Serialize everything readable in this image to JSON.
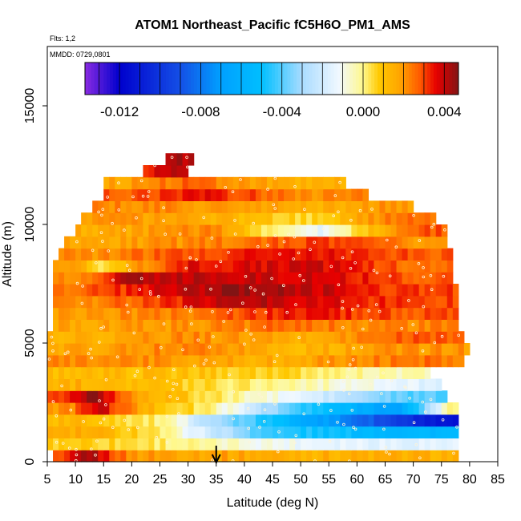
{
  "chart_data": {
    "type": "heatmap",
    "title": "ATOM1 Northeast_Pacific fC5H6O_PM1_AMS",
    "annotations": {
      "flights": "Flts: 1,2",
      "dates": "MMDD: 0729,0801"
    },
    "xlabel": "Latitude (deg N)",
    "ylabel": "Altitude (m)",
    "xlim": [
      5,
      85
    ],
    "ylim": [
      0,
      17500
    ],
    "x_ticks": [
      "5",
      "10",
      "15",
      "20",
      "25",
      "30",
      "35",
      "40",
      "45",
      "50",
      "55",
      "60",
      "65",
      "70",
      "75",
      "80",
      "85"
    ],
    "y_ticks": [
      "0",
      "5000",
      "10000",
      "15000"
    ],
    "colorbar": {
      "range": [
        -0.0137,
        0.0047
      ],
      "tick_values": [
        -0.012,
        -0.008,
        -0.004,
        0.0,
        0.004
      ],
      "tick_labels": [
        "-0.012",
        "-0.008",
        "-0.004",
        "0.000",
        "0.004"
      ]
    },
    "marker": {
      "latitude": 35,
      "symbol": "arrow-down"
    },
    "grid": false,
    "legend": "colorbar inside top",
    "layers": [
      {
        "alt": 250,
        "lat": [
          6,
          78
        ],
        "segments": [
          [
            6,
            9,
            0.0025
          ],
          [
            9,
            15,
            0.0045
          ],
          [
            15,
            25,
            0.002
          ],
          [
            25,
            78,
            0.0015
          ]
        ]
      },
      {
        "alt": 750,
        "lat": [
          5,
          78
        ],
        "segments": [
          [
            5,
            20,
            0.0008
          ],
          [
            20,
            30,
            0.0003
          ],
          [
            30,
            40,
            -0.0005
          ],
          [
            40,
            60,
            -0.0012
          ],
          [
            60,
            78,
            -0.0015
          ]
        ]
      },
      {
        "alt": 1250,
        "lat": [
          5,
          78
        ],
        "segments": [
          [
            5,
            20,
            0.0015
          ],
          [
            20,
            28,
            0.0005
          ],
          [
            28,
            35,
            -0.0015
          ],
          [
            35,
            55,
            -0.0045
          ],
          [
            55,
            78,
            -0.0055
          ]
        ]
      },
      {
        "alt": 1750,
        "lat": [
          5,
          78
        ],
        "segments": [
          [
            5,
            20,
            0.0012
          ],
          [
            20,
            30,
            0.0
          ],
          [
            30,
            40,
            -0.003
          ],
          [
            40,
            60,
            -0.006
          ],
          [
            60,
            72,
            -0.0095
          ],
          [
            72,
            78,
            -0.0115
          ]
        ]
      },
      {
        "alt": 2250,
        "lat": [
          5,
          78
        ],
        "segments": [
          [
            5,
            12,
            0.002
          ],
          [
            12,
            16,
            0.004
          ],
          [
            16,
            28,
            0.0015
          ],
          [
            28,
            40,
            0.0
          ],
          [
            40,
            60,
            -0.0045
          ],
          [
            60,
            75,
            -0.007
          ],
          [
            75,
            78,
            0.0
          ]
        ]
      },
      {
        "alt": 2750,
        "lat": [
          5,
          76
        ],
        "segments": [
          [
            5,
            10,
            0.003
          ],
          [
            10,
            16,
            0.0045
          ],
          [
            16,
            25,
            0.002
          ],
          [
            25,
            40,
            0.0005
          ],
          [
            40,
            60,
            -0.0015
          ],
          [
            60,
            76,
            -0.004
          ]
        ]
      },
      {
        "alt": 3250,
        "lat": [
          5,
          75
        ],
        "segments": [
          [
            5,
            25,
            0.0015
          ],
          [
            25,
            40,
            0.0006
          ],
          [
            40,
            60,
            -0.0002
          ],
          [
            60,
            75,
            -0.0015
          ]
        ]
      },
      {
        "alt": 3750,
        "lat": [
          5,
          73
        ],
        "segments": [
          [
            5,
            30,
            0.0012
          ],
          [
            30,
            50,
            0.0008
          ],
          [
            50,
            65,
            0.0
          ],
          [
            65,
            73,
            -0.0005
          ]
        ]
      },
      {
        "alt": 4250,
        "lat": [
          5,
          79
        ],
        "segments": [
          [
            5,
            30,
            0.0022
          ],
          [
            30,
            60,
            0.0015
          ],
          [
            60,
            79,
            0.0025
          ]
        ]
      },
      {
        "alt": 4750,
        "lat": [
          5,
          80
        ],
        "segments": [
          [
            5,
            25,
            0.0018
          ],
          [
            25,
            40,
            0.0025
          ],
          [
            40,
            55,
            0.0012
          ],
          [
            55,
            80,
            0.002
          ]
        ]
      },
      {
        "alt": 5250,
        "lat": [
          5,
          79
        ],
        "segments": [
          [
            5,
            20,
            0.0015
          ],
          [
            20,
            40,
            0.0022
          ],
          [
            40,
            60,
            0.0015
          ],
          [
            60,
            79,
            0.0028
          ]
        ]
      },
      {
        "alt": 5750,
        "lat": [
          6,
          78
        ],
        "segments": [
          [
            6,
            20,
            0.0018
          ],
          [
            20,
            35,
            0.002
          ],
          [
            35,
            55,
            0.0025
          ],
          [
            55,
            78,
            0.0022
          ]
        ]
      },
      {
        "alt": 6250,
        "lat": [
          6,
          78
        ],
        "segments": [
          [
            6,
            25,
            0.002
          ],
          [
            25,
            40,
            0.0025
          ],
          [
            40,
            60,
            0.0035
          ],
          [
            60,
            78,
            0.0028
          ]
        ]
      },
      {
        "alt": 6750,
        "lat": [
          6,
          78
        ],
        "segments": [
          [
            6,
            20,
            0.0022
          ],
          [
            20,
            30,
            0.003
          ],
          [
            30,
            45,
            0.0042
          ],
          [
            45,
            60,
            0.0038
          ],
          [
            60,
            78,
            0.003
          ]
        ]
      },
      {
        "alt": 7250,
        "lat": [
          6,
          78
        ],
        "segments": [
          [
            6,
            15,
            0.0025
          ],
          [
            15,
            30,
            0.0035
          ],
          [
            30,
            45,
            0.0045
          ],
          [
            45,
            60,
            0.004
          ],
          [
            60,
            78,
            0.003
          ]
        ]
      },
      {
        "alt": 7750,
        "lat": [
          6,
          77
        ],
        "segments": [
          [
            6,
            15,
            0.002
          ],
          [
            15,
            25,
            0.0042
          ],
          [
            25,
            45,
            0.004
          ],
          [
            45,
            65,
            0.0038
          ],
          [
            65,
            77,
            0.0028
          ]
        ]
      },
      {
        "alt": 8250,
        "lat": [
          6,
          77
        ],
        "segments": [
          [
            6,
            12,
            0.0018
          ],
          [
            12,
            18,
            0.0005
          ],
          [
            18,
            40,
            0.0035
          ],
          [
            40,
            65,
            0.0038
          ],
          [
            65,
            77,
            0.0025
          ]
        ]
      },
      {
        "alt": 8750,
        "lat": [
          7,
          77
        ],
        "segments": [
          [
            7,
            25,
            0.0022
          ],
          [
            25,
            45,
            0.0032
          ],
          [
            45,
            65,
            0.0036
          ],
          [
            65,
            77,
            0.0028
          ]
        ]
      },
      {
        "alt": 9250,
        "lat": [
          8,
          76
        ],
        "segments": [
          [
            8,
            30,
            0.0018
          ],
          [
            30,
            50,
            0.0025
          ],
          [
            50,
            65,
            0.0032
          ],
          [
            65,
            76,
            0.002
          ]
        ]
      },
      {
        "alt": 9750,
        "lat": [
          10,
          76
        ],
        "segments": [
          [
            10,
            20,
            0.0015
          ],
          [
            20,
            50,
            0.0022
          ],
          [
            50,
            57,
            -0.0015
          ],
          [
            57,
            62,
            0.0005
          ],
          [
            62,
            76,
            0.0028
          ]
        ]
      },
      {
        "alt": 10250,
        "lat": [
          11,
          74
        ],
        "segments": [
          [
            11,
            25,
            0.002
          ],
          [
            25,
            45,
            0.0015
          ],
          [
            45,
            60,
            0.0005
          ],
          [
            60,
            74,
            0.0025
          ]
        ]
      },
      {
        "alt": 10750,
        "lat": [
          13,
          70
        ],
        "segments": [
          [
            13,
            30,
            0.0022
          ],
          [
            30,
            50,
            0.0018
          ],
          [
            50,
            60,
            0.0015
          ],
          [
            60,
            70,
            0.002
          ]
        ]
      },
      {
        "alt": 11250,
        "lat": [
          15,
          62
        ],
        "segments": [
          [
            15,
            25,
            0.0028
          ],
          [
            25,
            40,
            0.0035
          ],
          [
            40,
            62,
            0.0022
          ]
        ]
      },
      {
        "alt": 11750,
        "lat": [
          15,
          58
        ],
        "segments": [
          [
            15,
            25,
            0.0018
          ],
          [
            25,
            35,
            0.0028
          ],
          [
            35,
            58,
            0.0015
          ]
        ]
      },
      {
        "alt": 12250,
        "lat": [
          22,
          30
        ],
        "segments": [
          [
            22,
            25,
            0.0035
          ],
          [
            25,
            30,
            0.004
          ]
        ]
      },
      {
        "alt": 12750,
        "lat": [
          26,
          31
        ],
        "segments": [
          [
            26,
            31,
            0.0042
          ]
        ]
      }
    ]
  }
}
